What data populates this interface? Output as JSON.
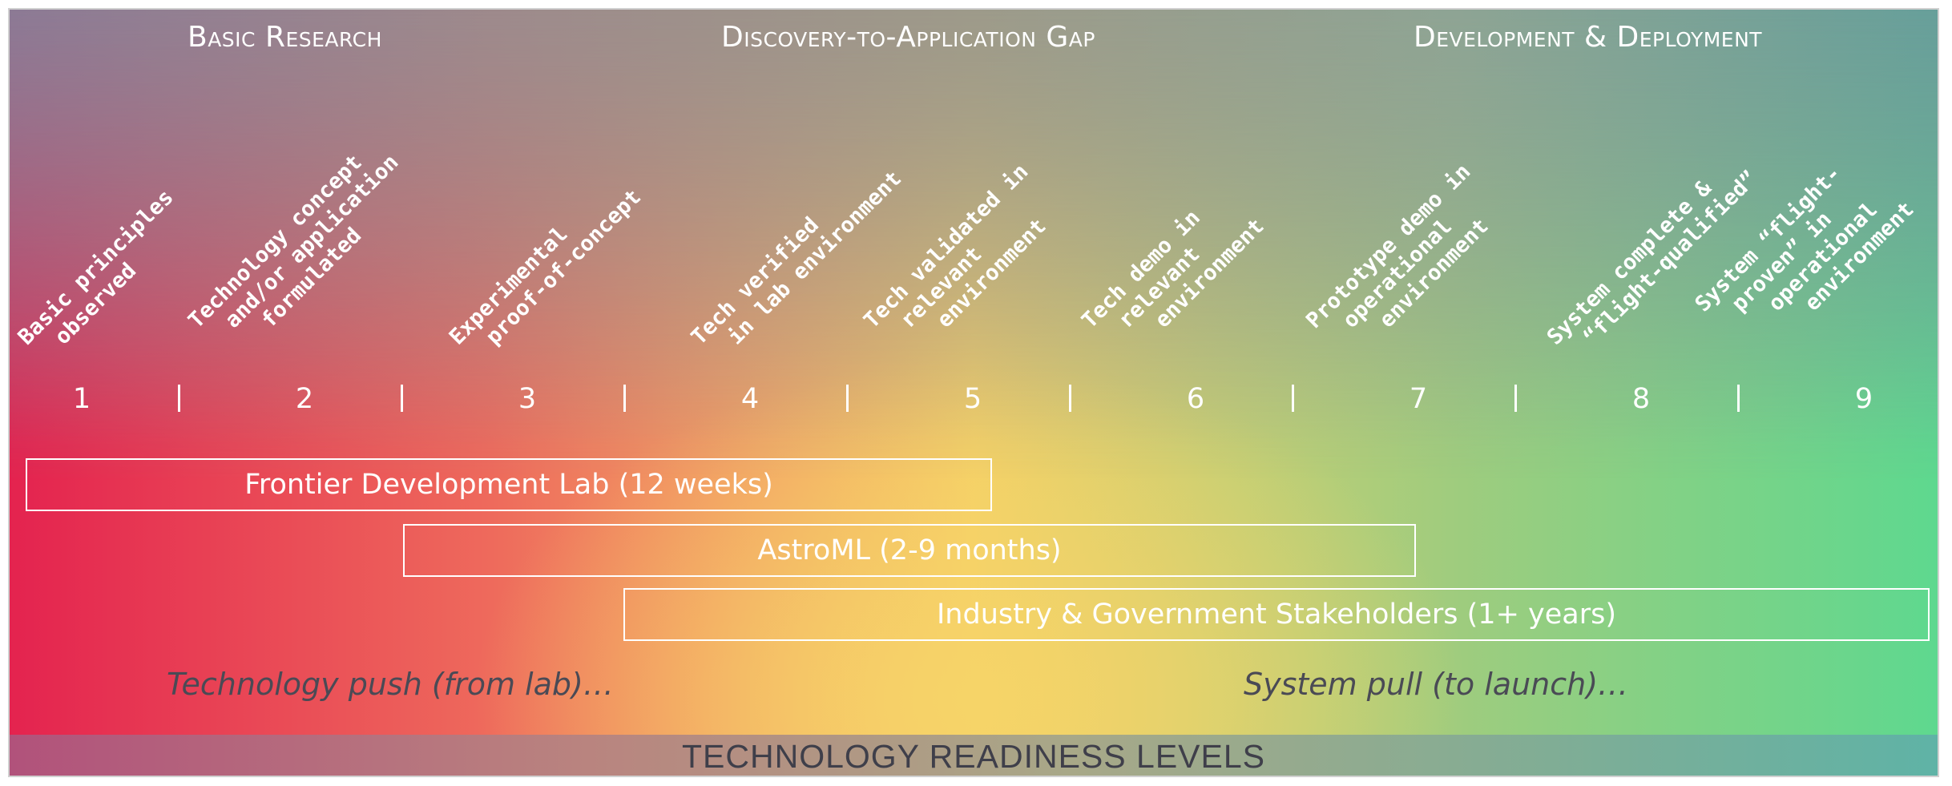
{
  "phases": {
    "basic": "Basic Research",
    "gap": "Discovery-to-Application Gap",
    "development": "Development & Deployment"
  },
  "trl": [
    {
      "level": "1",
      "desc": "Basic principles\n  observed"
    },
    {
      "level": "2",
      "desc": "Technology concept\n  and/or application\n    formulated"
    },
    {
      "level": "3",
      "desc": "Experimental\n  proof-of-concept"
    },
    {
      "level": "4",
      "desc": "Tech verified\n  in lab environment"
    },
    {
      "level": "5",
      "desc": "Tech validated in\n  relevant\n    environment"
    },
    {
      "level": "6",
      "desc": "Tech demo in\n  relevant\n    environment"
    },
    {
      "level": "7",
      "desc": "Prototype demo in\n  operational\n    environment"
    },
    {
      "level": "8",
      "desc": "System complete &\n  “flight-qualified”"
    },
    {
      "level": "9",
      "desc": "System “flight-\n  proven” in\n    operational\n      environment"
    }
  ],
  "programs": {
    "fdl": "Frontier Development Lab (12 weeks)",
    "astroml": "AstroML (2-9 months)",
    "industry": "Industry & Government Stakeholders (1+ years)"
  },
  "push_pull": {
    "push": "Technology push (from lab)…",
    "pull": "System pull (to launch)…"
  },
  "footer": {
    "label": "TECHNOLOGY READINESS LEVELS"
  }
}
